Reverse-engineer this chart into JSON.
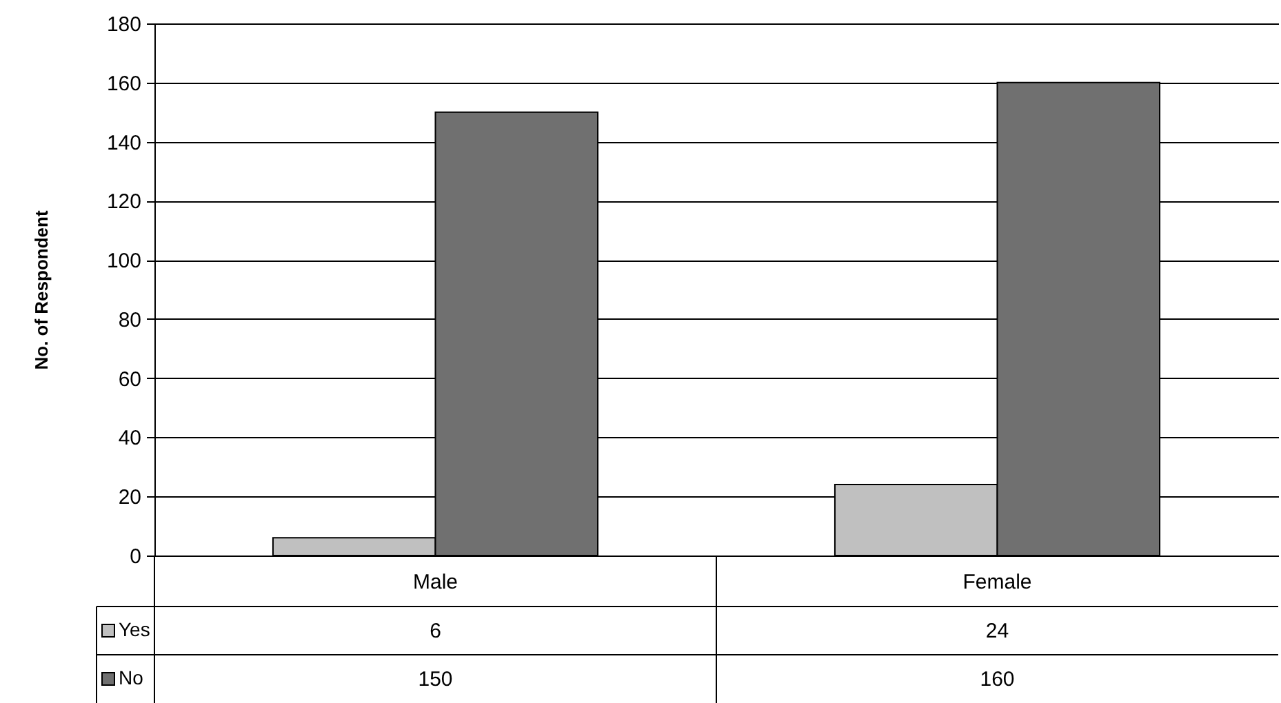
{
  "chart_data": {
    "type": "bar",
    "ylabel": "No. of Respondent",
    "categories": [
      "Male",
      "Female"
    ],
    "series": [
      {
        "name": "Yes",
        "color": "#c0c0c0",
        "values": [
          6,
          24
        ]
      },
      {
        "name": "No",
        "color": "#707070",
        "values": [
          150,
          160
        ]
      }
    ],
    "ylim": [
      0,
      180
    ],
    "yticks": [
      0,
      20,
      40,
      60,
      80,
      100,
      120,
      140,
      160,
      180
    ],
    "grid": "y",
    "legend": "bottom left",
    "data_labels": true
  }
}
